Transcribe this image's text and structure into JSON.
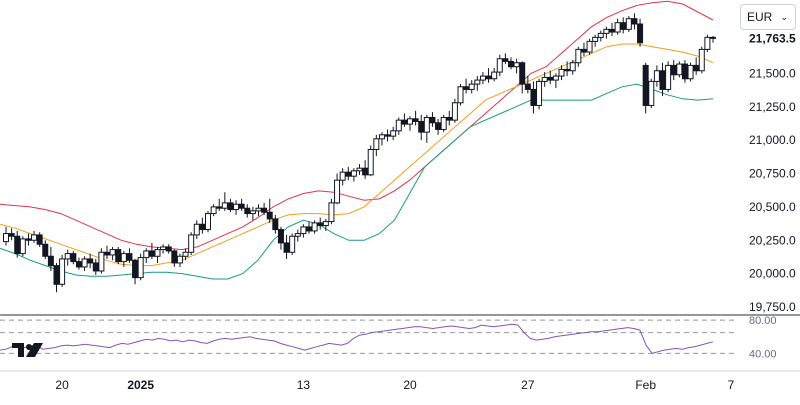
{
  "currency": {
    "value": "EUR"
  },
  "last_price_label": "21,763.5",
  "colors": {
    "upper_band": "#e0344b",
    "middle_band": "#f59d1f",
    "lower_band": "#199c7f",
    "rsi_line": "#7e57c2",
    "candle": "#131722"
  },
  "logo_icon": "tradingview-logo-icon",
  "chart_data": {
    "type": "candlestick",
    "y_axis": {
      "ticks": [
        19750,
        20000,
        20250,
        20500,
        20750,
        21000,
        21250,
        21500
      ],
      "tick_labels": [
        "19,750.0",
        "20,000.0",
        "20,250.0",
        "20,500.0",
        "20,750.0",
        "21,000.0",
        "21,250.0",
        "21,500.0"
      ],
      "range": [
        19690,
        22050
      ],
      "position": "right"
    },
    "x_axis": {
      "labels": [
        "20",
        "2025",
        "13",
        "20",
        "27",
        "Feb",
        "7"
      ],
      "bold_labels": [
        "2025"
      ]
    },
    "rsi": {
      "range": [
        20,
        85
      ],
      "levels": [
        80,
        65,
        40
      ],
      "tick_labels": [
        "80.00",
        "40.00"
      ],
      "values": [
        44,
        45,
        48,
        50,
        47,
        49,
        50,
        45,
        46,
        47,
        49,
        50,
        49,
        50,
        51,
        50,
        49,
        48,
        47,
        50,
        52,
        51,
        53,
        55,
        57,
        56,
        58,
        57,
        55,
        56,
        54,
        56,
        55,
        53,
        52,
        55,
        57,
        58,
        57,
        58,
        59,
        60,
        58,
        57,
        56,
        55,
        52,
        50,
        48,
        46,
        44,
        46,
        48,
        50,
        52,
        51,
        50,
        52,
        58,
        62,
        63,
        65,
        66,
        67,
        68,
        69,
        70,
        71,
        72,
        72,
        71,
        70,
        71,
        72,
        73,
        72,
        71,
        70,
        71,
        74,
        73,
        72,
        73,
        74,
        75,
        74,
        65,
        58,
        56,
        57,
        58,
        60,
        61,
        62,
        63,
        64,
        65,
        66,
        66,
        67,
        68,
        69,
        70,
        71,
        70,
        68,
        50,
        40,
        42,
        44,
        45,
        46,
        45,
        47,
        48,
        50,
        52,
        54
      ]
    },
    "bands": {
      "upper": [
        20520,
        20510,
        20500,
        20480,
        20450,
        20400,
        20350,
        20300,
        20250,
        20220,
        20200,
        20190,
        20180,
        20200,
        20250,
        20300,
        20350,
        20420,
        20500,
        20560,
        20600,
        20620,
        20610,
        20580,
        20550,
        20560,
        20620,
        20700,
        20800,
        20900,
        21000,
        21100,
        21200,
        21300,
        21400,
        21500,
        21550,
        21650,
        21750,
        21850,
        21920,
        21970,
        22010,
        22030,
        22040,
        22020,
        21960,
        21900
      ],
      "middle": [
        20370,
        20340,
        20300,
        20260,
        20220,
        20180,
        20140,
        20100,
        20070,
        20060,
        20060,
        20080,
        20100,
        20150,
        20200,
        20250,
        20300,
        20350,
        20400,
        20440,
        20450,
        20450,
        20440,
        20450,
        20500,
        20600,
        20700,
        20800,
        20900,
        21000,
        21100,
        21200,
        21300,
        21350,
        21400,
        21450,
        21500,
        21550,
        21600,
        21650,
        21700,
        21720,
        21720,
        21700,
        21680,
        21660,
        21630,
        21580
      ],
      "lower": [
        20190,
        20150,
        20100,
        20060,
        20020,
        19990,
        19980,
        19980,
        19990,
        20000,
        20010,
        20010,
        20000,
        19980,
        19960,
        19960,
        20000,
        20100,
        20250,
        20350,
        20400,
        20370,
        20300,
        20250,
        20250,
        20300,
        20400,
        20600,
        20800,
        20900,
        21000,
        21100,
        21150,
        21200,
        21250,
        21300,
        21300,
        21300,
        21300,
        21300,
        21350,
        21400,
        21420,
        21380,
        21340,
        21310,
        21300,
        21310
      ]
    },
    "candles": [
      [
        20240,
        20350,
        20210,
        20300
      ],
      [
        20300,
        20340,
        20250,
        20280
      ],
      [
        20280,
        20320,
        20120,
        20150
      ],
      [
        20150,
        20280,
        20130,
        20260
      ],
      [
        20260,
        20300,
        20210,
        20250
      ],
      [
        20250,
        20320,
        20230,
        20290
      ],
      [
        20290,
        20310,
        20200,
        20220
      ],
      [
        20220,
        20250,
        20110,
        20130
      ],
      [
        20130,
        20200,
        20020,
        20060
      ],
      [
        20060,
        20080,
        19860,
        19920
      ],
      [
        19920,
        20140,
        19900,
        20110
      ],
      [
        20110,
        20180,
        20060,
        20150
      ],
      [
        20150,
        20170,
        20070,
        20090
      ],
      [
        20090,
        20120,
        20030,
        20050
      ],
      [
        20050,
        20130,
        20020,
        20110
      ],
      [
        20110,
        20150,
        20040,
        20080
      ],
      [
        20080,
        20110,
        19990,
        20020
      ],
      [
        20020,
        20190,
        20000,
        20160
      ],
      [
        20160,
        20210,
        20110,
        20140
      ],
      [
        20140,
        20200,
        20100,
        20180
      ],
      [
        20180,
        20200,
        20070,
        20090
      ],
      [
        20090,
        20170,
        20050,
        20150
      ],
      [
        20150,
        20190,
        20080,
        20100
      ],
      [
        20100,
        20110,
        19920,
        19970
      ],
      [
        19970,
        20150,
        19950,
        20120
      ],
      [
        20120,
        20190,
        20080,
        20170
      ],
      [
        20170,
        20230,
        20110,
        20130
      ],
      [
        20130,
        20200,
        20080,
        20180
      ],
      [
        20180,
        20220,
        20150,
        20200
      ],
      [
        20200,
        20220,
        20150,
        20170
      ],
      [
        20170,
        20180,
        20050,
        20080
      ],
      [
        20080,
        20150,
        20050,
        20130
      ],
      [
        20130,
        20190,
        20100,
        20160
      ],
      [
        20160,
        20310,
        20140,
        20290
      ],
      [
        20290,
        20400,
        20260,
        20370
      ],
      [
        20370,
        20420,
        20300,
        20330
      ],
      [
        20330,
        20470,
        20310,
        20450
      ],
      [
        20450,
        20520,
        20430,
        20500
      ],
      [
        20500,
        20560,
        20470,
        20490
      ],
      [
        20490,
        20610,
        20470,
        20530
      ],
      [
        20530,
        20560,
        20460,
        20480
      ],
      [
        20480,
        20550,
        20440,
        20520
      ],
      [
        20520,
        20560,
        20470,
        20490
      ],
      [
        20490,
        20520,
        20420,
        20450
      ],
      [
        20450,
        20500,
        20400,
        20470
      ],
      [
        20470,
        20520,
        20430,
        20490
      ],
      [
        20490,
        20530,
        20440,
        20460
      ],
      [
        20460,
        20560,
        20380,
        20410
      ],
      [
        20410,
        20440,
        20300,
        20330
      ],
      [
        20330,
        20350,
        20180,
        20230
      ],
      [
        20230,
        20290,
        20110,
        20160
      ],
      [
        20160,
        20300,
        20140,
        20280
      ],
      [
        20280,
        20330,
        20240,
        20300
      ],
      [
        20300,
        20370,
        20270,
        20350
      ],
      [
        20350,
        20390,
        20300,
        20320
      ],
      [
        20320,
        20400,
        20300,
        20380
      ],
      [
        20380,
        20420,
        20330,
        20360
      ],
      [
        20360,
        20410,
        20320,
        20390
      ],
      [
        20390,
        20560,
        20370,
        20530
      ],
      [
        20530,
        20750,
        20520,
        20700
      ],
      [
        20700,
        20790,
        20660,
        20760
      ],
      [
        20760,
        20800,
        20700,
        20730
      ],
      [
        20730,
        20790,
        20690,
        20770
      ],
      [
        20770,
        20820,
        20740,
        20790
      ],
      [
        20790,
        20850,
        20710,
        20740
      ],
      [
        20740,
        20960,
        20730,
        20930
      ],
      [
        20930,
        21040,
        20880,
        21010
      ],
      [
        21010,
        21060,
        20960,
        21040
      ],
      [
        21040,
        21080,
        20990,
        21030
      ],
      [
        21030,
        21100,
        21000,
        21070
      ],
      [
        21070,
        21170,
        21040,
        21150
      ],
      [
        21150,
        21200,
        21100,
        21120
      ],
      [
        21120,
        21180,
        21070,
        21160
      ],
      [
        21160,
        21220,
        21110,
        21140
      ],
      [
        21140,
        21190,
        21000,
        21060
      ],
      [
        21060,
        21190,
        20980,
        21170
      ],
      [
        21170,
        21210,
        21100,
        21130
      ],
      [
        21130,
        21160,
        21040,
        21080
      ],
      [
        21080,
        21190,
        21060,
        21170
      ],
      [
        21170,
        21220,
        21110,
        21150
      ],
      [
        21150,
        21310,
        21130,
        21280
      ],
      [
        21280,
        21420,
        21260,
        21400
      ],
      [
        21400,
        21460,
        21350,
        21380
      ],
      [
        21380,
        21450,
        21350,
        21420
      ],
      [
        21420,
        21480,
        21370,
        21450
      ],
      [
        21450,
        21510,
        21420,
        21480
      ],
      [
        21480,
        21540,
        21430,
        21460
      ],
      [
        21460,
        21540,
        21440,
        21510
      ],
      [
        21510,
        21640,
        21480,
        21610
      ],
      [
        21610,
        21650,
        21570,
        21590
      ],
      [
        21590,
        21620,
        21530,
        21550
      ],
      [
        21550,
        21610,
        21500,
        21580
      ],
      [
        21580,
        21590,
        21350,
        21420
      ],
      [
        21420,
        21480,
        21350,
        21380
      ],
      [
        21380,
        21440,
        21200,
        21260
      ],
      [
        21260,
        21460,
        21230,
        21440
      ],
      [
        21440,
        21510,
        21400,
        21470
      ],
      [
        21470,
        21520,
        21420,
        21450
      ],
      [
        21450,
        21500,
        21390,
        21480
      ],
      [
        21480,
        21560,
        21450,
        21530
      ],
      [
        21530,
        21590,
        21480,
        21520
      ],
      [
        21520,
        21600,
        21490,
        21580
      ],
      [
        21580,
        21700,
        21550,
        21680
      ],
      [
        21680,
        21730,
        21630,
        21660
      ],
      [
        21660,
        21760,
        21640,
        21740
      ],
      [
        21740,
        21790,
        21700,
        21770
      ],
      [
        21770,
        21820,
        21740,
        21800
      ],
      [
        21800,
        21850,
        21760,
        21830
      ],
      [
        21830,
        21880,
        21780,
        21810
      ],
      [
        21810,
        21910,
        21790,
        21880
      ],
      [
        21880,
        21920,
        21800,
        21830
      ],
      [
        21830,
        21930,
        21810,
        21910
      ],
      [
        21910,
        21950,
        21830,
        21870
      ],
      [
        21870,
        21910,
        21700,
        21730
      ],
      [
        21560,
        21580,
        21200,
        21260
      ],
      [
        21260,
        21460,
        21240,
        21440
      ],
      [
        21440,
        21560,
        21400,
        21520
      ],
      [
        21520,
        21580,
        21330,
        21380
      ],
      [
        21380,
        21590,
        21360,
        21560
      ],
      [
        21560,
        21600,
        21450,
        21490
      ],
      [
        21490,
        21590,
        21470,
        21570
      ],
      [
        21570,
        21600,
        21430,
        21460
      ],
      [
        21460,
        21580,
        21440,
        21560
      ],
      [
        21560,
        21620,
        21490,
        21520
      ],
      [
        21520,
        21700,
        21500,
        21680
      ],
      [
        21680,
        21790,
        21660,
        21770
      ],
      [
        21770,
        21780,
        21730,
        21763
      ]
    ]
  }
}
